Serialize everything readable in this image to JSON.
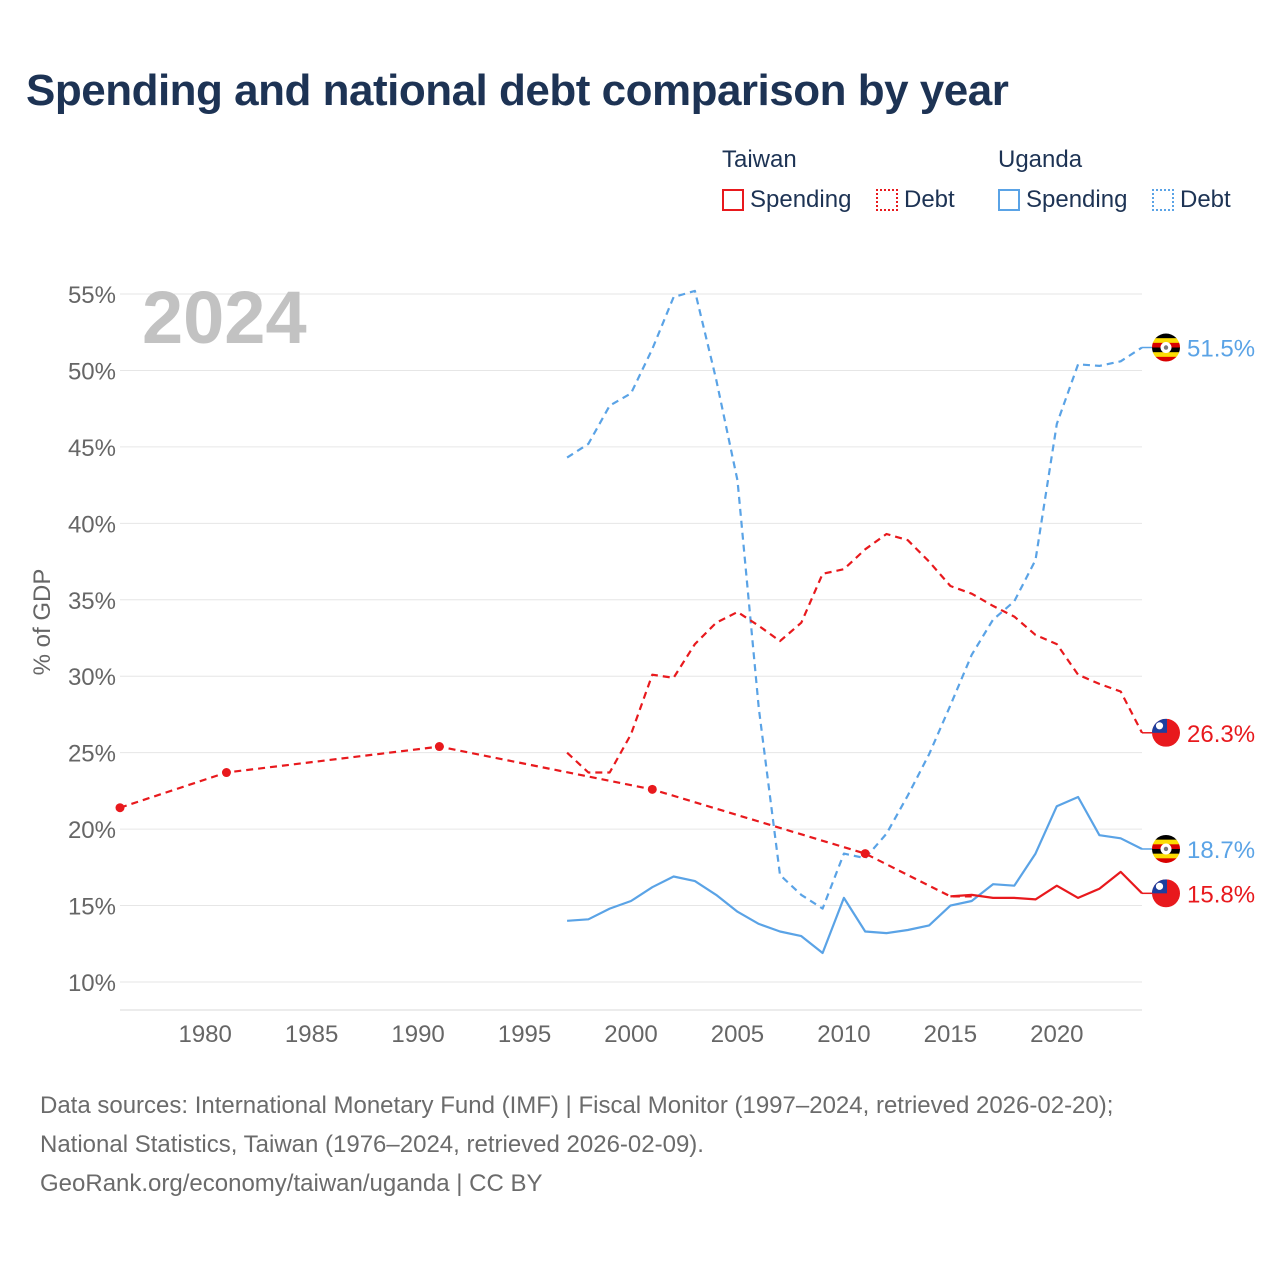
{
  "title": "Spending and national debt comparison by year",
  "legend": {
    "groups": [
      {
        "label": "Taiwan",
        "items": [
          {
            "label": "Spending",
            "style": "solid"
          },
          {
            "label": "Debt",
            "style": "dotted"
          }
        ],
        "color": "#e8191d"
      },
      {
        "label": "Uganda",
        "items": [
          {
            "label": "Spending",
            "style": "solid"
          },
          {
            "label": "Debt",
            "style": "dotted"
          }
        ],
        "color": "#5aa3e6"
      }
    ]
  },
  "colors": {
    "taiwan": "#e8191d",
    "uganda": "#5aa3e6",
    "grid": "#e6e6e6",
    "axis_text": "#666666",
    "year_watermark": "#c2c2c2"
  },
  "sources": {
    "line1": "Data sources: International Monetary Fund (IMF) | Fiscal Monitor (1997–2024, retrieved 2026-02-20);",
    "line2": "National Statistics, Taiwan (1976–2024, retrieved 2026-02-09).",
    "line3": "GeoRank.org/economy/taiwan/uganda | CC BY"
  },
  "chart_data": {
    "type": "line",
    "title": "Spending and national debt comparison by year",
    "year_label": "2024",
    "ylabel": "% of GDP",
    "xlabel": "",
    "xlim": [
      1976,
      2024
    ],
    "ylim": [
      8,
      56
    ],
    "yticks": [
      10,
      15,
      20,
      25,
      30,
      35,
      40,
      45,
      50,
      55
    ],
    "ytick_labels": [
      "10%",
      "15%",
      "20%",
      "25%",
      "30%",
      "35%",
      "40%",
      "45%",
      "50%",
      "55%"
    ],
    "xticks": [
      1980,
      1985,
      1990,
      1995,
      2000,
      2005,
      2010,
      2015,
      2020
    ],
    "xtick_labels": [
      "1980",
      "1985",
      "1990",
      "1995",
      "2000",
      "2005",
      "2010",
      "2015",
      "2020"
    ],
    "series": [
      {
        "name": "Uganda Debt",
        "country": "uganda",
        "style": "dashed",
        "x": [
          1997,
          1998,
          1999,
          2000,
          2001,
          2002,
          2003,
          2004,
          2005,
          2006,
          2007,
          2008,
          2009,
          2010,
          2011,
          2012,
          2013,
          2014,
          2015,
          2016,
          2017,
          2018,
          2019,
          2020,
          2021,
          2022,
          2023,
          2024
        ],
        "values": [
          44.3,
          45.2,
          47.7,
          48.5,
          51.4,
          54.8,
          55.2,
          49.4,
          42.8,
          27.9,
          17.0,
          15.7,
          14.8,
          18.4,
          18.1,
          19.7,
          22.2,
          24.9,
          28.1,
          31.4,
          33.7,
          34.9,
          37.6,
          46.5,
          50.4,
          50.3,
          50.6,
          51.5
        ],
        "end_label": "51.5%"
      },
      {
        "name": "Taiwan Debt",
        "country": "taiwan",
        "style": "dashed",
        "x": [
          1997,
          1998,
          1999,
          2000,
          2001,
          2002,
          2003,
          2004,
          2005,
          2006,
          2007,
          2008,
          2009,
          2010,
          2011,
          2012,
          2013,
          2014,
          2015,
          2016,
          2017,
          2018,
          2019,
          2020,
          2021,
          2022,
          2023,
          2024
        ],
        "values": [
          25.0,
          23.7,
          23.7,
          26.2,
          30.1,
          29.9,
          32.1,
          33.5,
          34.2,
          33.3,
          32.3,
          33.5,
          36.7,
          37.0,
          38.3,
          39.3,
          38.9,
          37.5,
          35.9,
          35.4,
          34.6,
          33.9,
          32.7,
          32.1,
          30.1,
          29.5,
          29.0,
          26.3
        ],
        "end_label": "26.3%"
      },
      {
        "name": "Taiwan Debt (National Statistics)",
        "country": "taiwan",
        "style": "dashed",
        "x": [
          1976,
          1981,
          1991,
          2001,
          2011,
          2015,
          2016
        ],
        "values": [
          21.4,
          23.7,
          25.4,
          22.6,
          18.4,
          15.6,
          15.6
        ],
        "markers": [
          1976,
          1981,
          1991,
          2001,
          2011
        ]
      },
      {
        "name": "Uganda Spending",
        "country": "uganda",
        "style": "solid",
        "x": [
          1997,
          1998,
          1999,
          2000,
          2001,
          2002,
          2003,
          2004,
          2005,
          2006,
          2007,
          2008,
          2009,
          2010,
          2011,
          2012,
          2013,
          2014,
          2015,
          2016,
          2017,
          2018,
          2019,
          2020,
          2021,
          2022,
          2023,
          2024
        ],
        "values": [
          14.0,
          14.1,
          14.8,
          15.3,
          16.2,
          16.9,
          16.6,
          15.7,
          14.6,
          13.8,
          13.3,
          13.0,
          11.9,
          15.5,
          13.3,
          13.2,
          13.4,
          13.7,
          15.0,
          15.3,
          16.4,
          16.3,
          18.4,
          21.5,
          22.1,
          19.6,
          19.4,
          18.7
        ],
        "end_label": "18.7%"
      },
      {
        "name": "Taiwan Spending",
        "country": "taiwan",
        "style": "solid",
        "x": [
          2015,
          2016,
          2017,
          2018,
          2019,
          2020,
          2021,
          2022,
          2023,
          2024
        ],
        "values": [
          15.6,
          15.7,
          15.5,
          15.5,
          15.4,
          16.3,
          15.5,
          16.1,
          17.2,
          15.8
        ],
        "end_label": "15.8%"
      }
    ]
  }
}
